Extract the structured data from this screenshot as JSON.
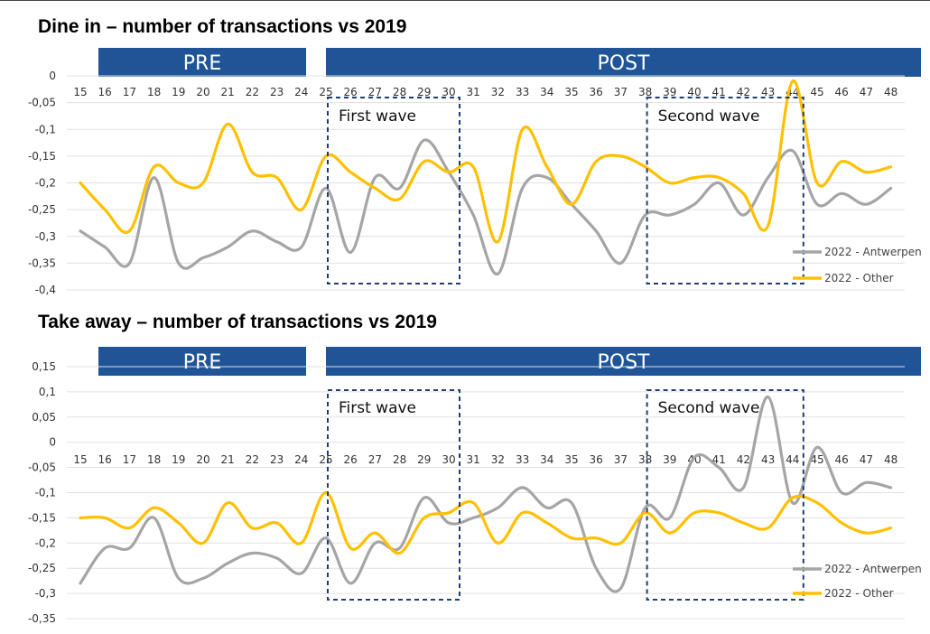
{
  "colors": {
    "band": "#1f5597",
    "antwerpen": "#a5a5a5",
    "other": "#ffc000",
    "wave_border": "#1f3f6e"
  },
  "chart_data": [
    {
      "type": "line",
      "title": "Dine in – number of transactions vs 2019",
      "bands": [
        {
          "label": "PRE",
          "from": 16,
          "to": 24
        },
        {
          "label": "POST",
          "from": 25,
          "to": 49
        }
      ],
      "waves": [
        {
          "label": "First wave",
          "from": 25,
          "to": 30
        },
        {
          "label": "Second wave",
          "from": 38,
          "to": 44
        }
      ],
      "x": [
        15,
        16,
        17,
        18,
        19,
        20,
        21,
        22,
        23,
        24,
        25,
        26,
        27,
        28,
        29,
        30,
        31,
        32,
        33,
        34,
        35,
        36,
        37,
        38,
        39,
        40,
        41,
        42,
        43,
        44,
        45,
        46,
        47,
        48
      ],
      "x_tick_labels": [
        "15",
        "16",
        "17",
        "18",
        "19",
        "20",
        "21",
        "22",
        "23",
        "24",
        "25",
        "26",
        "27",
        "28",
        "29",
        "30",
        "31",
        "32",
        "33",
        "34",
        "35",
        "36",
        "37",
        "38",
        "39",
        "40",
        "41",
        "42",
        "43",
        "44",
        "45",
        "46",
        "47",
        "48"
      ],
      "y_tick_labels": [
        "0",
        "-0,05",
        "-0,1",
        "-0,15",
        "-0,2",
        "-0,25",
        "-0,3",
        "-0,35",
        "-0,4"
      ],
      "ylim": [
        -0.4,
        0
      ],
      "grid": true,
      "legend_position": "bottom-right",
      "series": [
        {
          "name": "2022 - Antwerpen",
          "color": "#a5a5a5",
          "values": [
            -0.29,
            -0.32,
            -0.35,
            -0.19,
            -0.35,
            -0.34,
            -0.32,
            -0.29,
            -0.31,
            -0.32,
            -0.21,
            -0.33,
            -0.19,
            -0.21,
            -0.12,
            -0.18,
            -0.26,
            -0.37,
            -0.21,
            -0.19,
            -0.24,
            -0.29,
            -0.35,
            -0.26,
            -0.26,
            -0.24,
            -0.2,
            -0.26,
            -0.19,
            -0.14,
            -0.24,
            -0.22,
            -0.24,
            -0.21
          ]
        },
        {
          "name": "2022 - Other",
          "color": "#ffc000",
          "values": [
            -0.2,
            -0.25,
            -0.29,
            -0.17,
            -0.2,
            -0.2,
            -0.09,
            -0.18,
            -0.19,
            -0.25,
            -0.15,
            -0.18,
            -0.21,
            -0.23,
            -0.16,
            -0.18,
            -0.17,
            -0.31,
            -0.1,
            -0.17,
            -0.24,
            -0.16,
            -0.15,
            -0.17,
            -0.2,
            -0.19,
            -0.19,
            -0.22,
            -0.28,
            -0.01,
            -0.2,
            -0.16,
            -0.18,
            -0.17
          ]
        }
      ]
    },
    {
      "type": "line",
      "title": "Take away – number of transactions vs 2019",
      "bands": [
        {
          "label": "PRE",
          "from": 16,
          "to": 24
        },
        {
          "label": "POST",
          "from": 25,
          "to": 49
        }
      ],
      "waves": [
        {
          "label": "First wave",
          "from": 25,
          "to": 30
        },
        {
          "label": "Second wave",
          "from": 38,
          "to": 44
        }
      ],
      "x": [
        15,
        16,
        17,
        18,
        19,
        20,
        21,
        22,
        23,
        24,
        25,
        26,
        27,
        28,
        29,
        30,
        31,
        32,
        33,
        34,
        35,
        36,
        37,
        38,
        39,
        40,
        41,
        42,
        43,
        44,
        45,
        46,
        47,
        48
      ],
      "x_tick_labels": [
        "15",
        "16",
        "17",
        "18",
        "19",
        "20",
        "21",
        "22",
        "23",
        "24",
        "25",
        "26",
        "27",
        "28",
        "29",
        "30",
        "31",
        "32",
        "33",
        "34",
        "35",
        "36",
        "37",
        "38",
        "39",
        "40",
        "41",
        "42",
        "43",
        "44",
        "45",
        "46",
        "47",
        "48"
      ],
      "y_tick_labels": [
        "0,15",
        "0,1",
        "0,05",
        "0",
        "-0,05",
        "-0,1",
        "-0,15",
        "-0,2",
        "-0,25",
        "-0,3",
        "-0,35"
      ],
      "ylim": [
        -0.35,
        0.15
      ],
      "grid": true,
      "legend_position": "bottom-right",
      "series": [
        {
          "name": "2022 - Antwerpen",
          "color": "#a5a5a5",
          "values": [
            -0.28,
            -0.21,
            -0.21,
            -0.15,
            -0.27,
            -0.27,
            -0.24,
            -0.22,
            -0.23,
            -0.26,
            -0.19,
            -0.28,
            -0.2,
            -0.21,
            -0.11,
            -0.16,
            -0.15,
            -0.13,
            -0.09,
            -0.13,
            -0.12,
            -0.25,
            -0.29,
            -0.13,
            -0.15,
            -0.03,
            -0.05,
            -0.09,
            0.09,
            -0.12,
            -0.01,
            -0.1,
            -0.08,
            -0.09
          ]
        },
        {
          "name": "2022 - Other",
          "color": "#ffc000",
          "values": [
            -0.15,
            -0.15,
            -0.17,
            -0.13,
            -0.16,
            -0.2,
            -0.12,
            -0.17,
            -0.16,
            -0.2,
            -0.1,
            -0.21,
            -0.18,
            -0.22,
            -0.15,
            -0.14,
            -0.12,
            -0.2,
            -0.14,
            -0.16,
            -0.19,
            -0.19,
            -0.2,
            -0.14,
            -0.18,
            -0.14,
            -0.14,
            -0.16,
            -0.17,
            -0.11,
            -0.12,
            -0.16,
            -0.18,
            -0.17
          ]
        }
      ]
    }
  ]
}
